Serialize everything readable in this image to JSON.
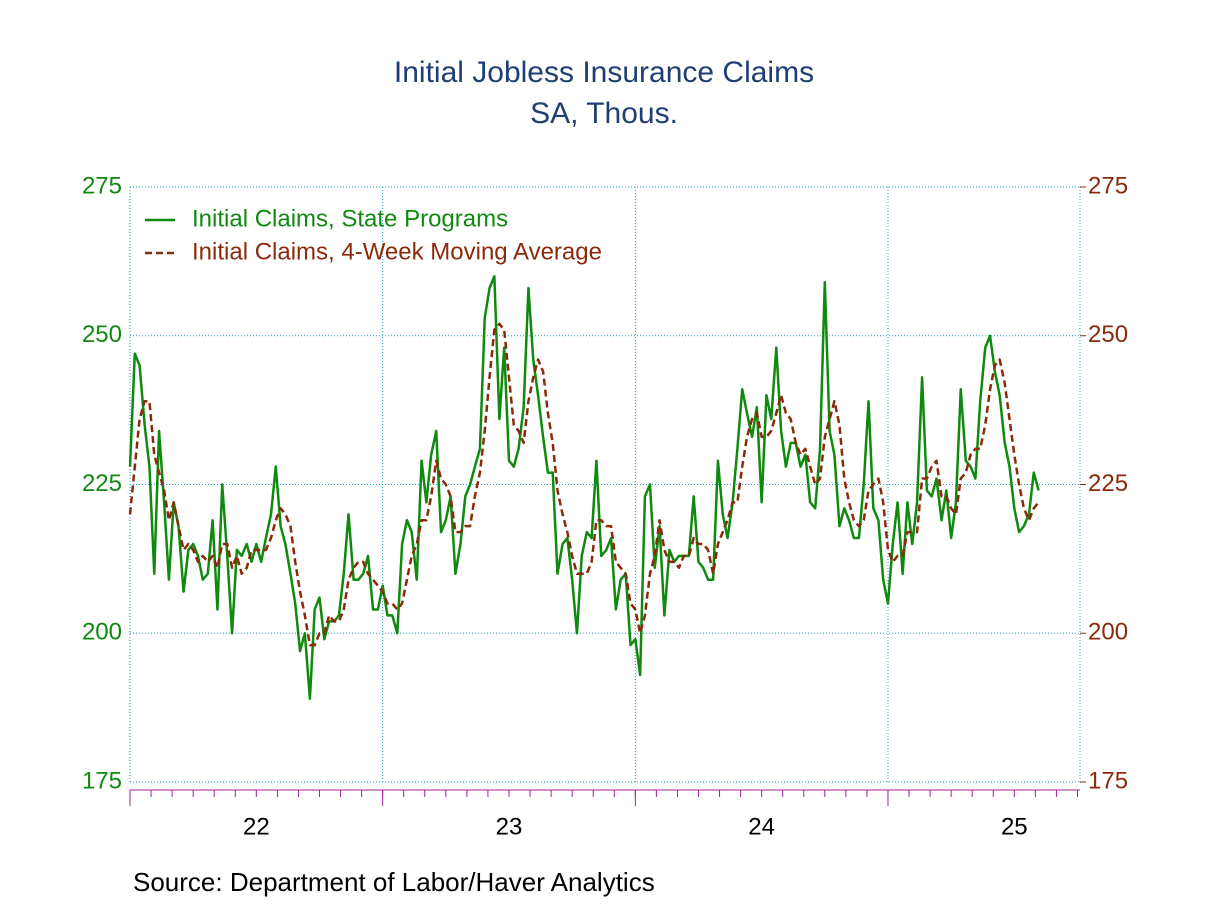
{
  "chart_data": {
    "type": "line",
    "title": "Initial Jobless Insurance Claims",
    "subtitle": "SA, Thous.",
    "source": "Source:  Department of Labor/Haver Analytics",
    "xlim": [
      22,
      25.76
    ],
    "xticks": [
      22,
      23,
      24,
      25
    ],
    "ylim": [
      175,
      275
    ],
    "yticks": [
      175,
      200,
      225,
      250,
      275
    ],
    "y2lim": [
      175,
      275
    ],
    "y2ticks": [
      175,
      200,
      225,
      250,
      275
    ],
    "grid": true,
    "legend": "upper-left",
    "x": [
      22,
      22.019,
      22.038,
      22.058,
      22.077,
      22.096,
      22.115,
      22.135,
      22.154,
      22.173,
      22.192,
      22.212,
      22.231,
      22.25,
      22.269,
      22.288,
      22.308,
      22.327,
      22.346,
      22.365,
      22.385,
      22.404,
      22.423,
      22.442,
      22.462,
      22.481,
      22.5,
      22.519,
      22.538,
      22.558,
      22.577,
      22.596,
      22.615,
      22.635,
      22.654,
      22.673,
      22.692,
      22.712,
      22.731,
      22.75,
      22.769,
      22.788,
      22.808,
      22.827,
      22.846,
      22.865,
      22.885,
      22.904,
      22.923,
      22.942,
      22.962,
      22.981,
      23,
      23.019,
      23.038,
      23.058,
      23.077,
      23.096,
      23.115,
      23.135,
      23.154,
      23.173,
      23.192,
      23.212,
      23.231,
      23.25,
      23.269,
      23.288,
      23.308,
      23.327,
      23.346,
      23.365,
      23.385,
      23.404,
      23.423,
      23.442,
      23.462,
      23.481,
      23.5,
      23.519,
      23.538,
      23.558,
      23.577,
      23.596,
      23.615,
      23.635,
      23.654,
      23.673,
      23.692,
      23.712,
      23.731,
      23.75,
      23.769,
      23.788,
      23.808,
      23.827,
      23.846,
      23.865,
      23.885,
      23.904,
      23.923,
      23.942,
      23.962,
      23.981,
      24,
      24.019,
      24.038,
      24.058,
      24.077,
      24.096,
      24.115,
      24.135,
      24.154,
      24.173,
      24.192,
      24.212,
      24.231,
      24.25,
      24.269,
      24.288,
      24.308,
      24.327,
      24.346,
      24.365,
      24.385,
      24.404,
      24.423,
      24.442,
      24.462,
      24.481,
      24.5,
      24.519,
      24.538,
      24.558,
      24.577,
      24.596,
      24.615,
      24.635,
      24.654,
      24.673,
      24.692,
      24.712,
      24.731,
      24.75,
      24.769,
      24.788,
      24.808,
      24.827,
      24.846,
      24.865,
      24.885,
      24.904,
      24.923,
      24.942,
      24.962,
      24.981,
      25,
      25.019,
      25.038,
      25.058,
      25.077,
      25.096,
      25.115,
      25.135,
      25.154,
      25.173,
      25.192,
      25.212,
      25.231,
      25.25,
      25.269,
      25.288,
      25.308,
      25.327,
      25.346,
      25.365,
      25.385,
      25.404,
      25.423,
      25.442,
      25.462,
      25.481,
      25.5,
      25.519,
      25.538,
      25.558,
      25.577,
      25.596
    ],
    "series": [
      {
        "name": "Initial Claims, State Programs",
        "color": "#0f8a0f",
        "axis": "y",
        "values": [
          228,
          247,
          245,
          235,
          228,
          210,
          234,
          222,
          209,
          222,
          218,
          207,
          214,
          215,
          213,
          209,
          210,
          219,
          204,
          225,
          213,
          200,
          214,
          213,
          215,
          212,
          215,
          212,
          216,
          220,
          228,
          218,
          215,
          210,
          205,
          197,
          200,
          189,
          204,
          206,
          199,
          202,
          202,
          203,
          210,
          220,
          209,
          209,
          210,
          213,
          204,
          204,
          208,
          203,
          203,
          200,
          215,
          219,
          217,
          209,
          229,
          222,
          230,
          234,
          217,
          219,
          223,
          210,
          215,
          223,
          225,
          228,
          231,
          253,
          258,
          260,
          236,
          248,
          229,
          228,
          231,
          238,
          258,
          246,
          240,
          233,
          227,
          227,
          210,
          215,
          216,
          209,
          200,
          213,
          217,
          216,
          229,
          213,
          214,
          216,
          204,
          209,
          210,
          198,
          199,
          193,
          223,
          225,
          211,
          218,
          203,
          214,
          212,
          213,
          213,
          213,
          223,
          212,
          211,
          209,
          209,
          229,
          220,
          216,
          222,
          231,
          241,
          237,
          233,
          238,
          222,
          240,
          236,
          248,
          234,
          228,
          232,
          232,
          228,
          230,
          222,
          221,
          231,
          259,
          234,
          230,
          218,
          221,
          219,
          216,
          216,
          225,
          239,
          221,
          219,
          209,
          205,
          215,
          222,
          210,
          222,
          215,
          222,
          243,
          224,
          223,
          226,
          219,
          224,
          216,
          222,
          241,
          229,
          228,
          226,
          239,
          248,
          250,
          244,
          240,
          232,
          228,
          221,
          217,
          218,
          220,
          227,
          224
        ]
      },
      {
        "name": "Initial Claims, 4-Week Moving Average",
        "color": "#8b2a0a",
        "axis": "y2",
        "dashed": true,
        "values": [
          220,
          228,
          236,
          239,
          239,
          230,
          227,
          224,
          219,
          222,
          218,
          214,
          215,
          214,
          212,
          213,
          212,
          213,
          211,
          215,
          215,
          211,
          213,
          210,
          211,
          214,
          214,
          214,
          214,
          216,
          219,
          221,
          220,
          218,
          212,
          207,
          203,
          198,
          198,
          200,
          200,
          203,
          202,
          202,
          204,
          209,
          211,
          212,
          212,
          210,
          209,
          208,
          207,
          205,
          205,
          204,
          205,
          209,
          213,
          215,
          219,
          219,
          223,
          229,
          226,
          225,
          223,
          217,
          217,
          218,
          218,
          223,
          227,
          234,
          243,
          251,
          252,
          251,
          243,
          235,
          234,
          232,
          239,
          243,
          246,
          244,
          237,
          232,
          224,
          220,
          217,
          213,
          210,
          210,
          210,
          212,
          219,
          219,
          218,
          218,
          212,
          211,
          210,
          205,
          204,
          200,
          203,
          210,
          213,
          219,
          214,
          212,
          212,
          211,
          213,
          213,
          216,
          215,
          215,
          214,
          210,
          215,
          217,
          219,
          222,
          222,
          228,
          233,
          236,
          237,
          233,
          233,
          234,
          237,
          240,
          237,
          236,
          232,
          230,
          231,
          228,
          225,
          226,
          233,
          236,
          239,
          235,
          226,
          222,
          219,
          218,
          219,
          224,
          225,
          226,
          222,
          214,
          212,
          213,
          213,
          217,
          217,
          217,
          226,
          226,
          228,
          229,
          223,
          223,
          221,
          220,
          226,
          227,
          230,
          231,
          231,
          235,
          241,
          245,
          246,
          242,
          236,
          230,
          225,
          221,
          219,
          221,
          222
        ]
      }
    ]
  }
}
